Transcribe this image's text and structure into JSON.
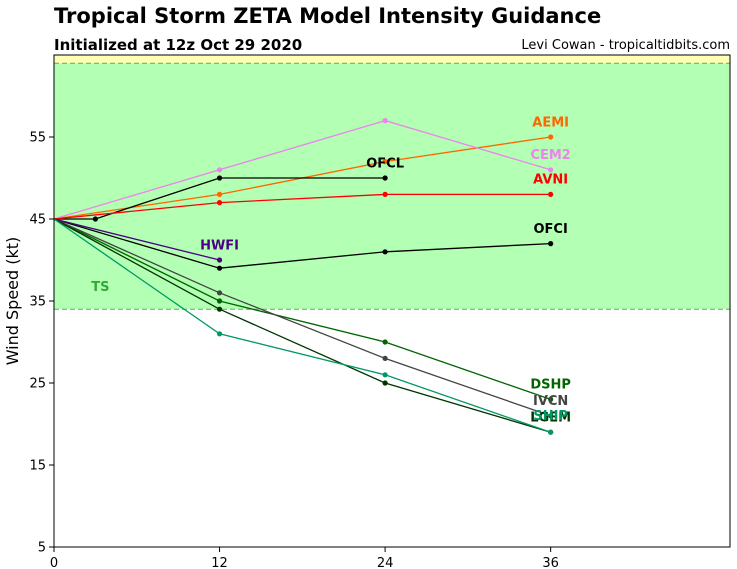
{
  "header": {
    "title": "Tropical Storm ZETA Model Intensity Guidance",
    "subtitle": "Initialized at 12z Oct 29 2020",
    "credit": "Levi Cowan - tropicaltidbits.com"
  },
  "chart_data": {
    "type": "line",
    "xlabel": "",
    "ylabel": "Wind Speed (kt)",
    "xlim": [
      0,
      49
    ],
    "ylim": [
      5,
      65
    ],
    "x_ticks": [
      0,
      12,
      24,
      36
    ],
    "y_ticks": [
      5,
      15,
      25,
      35,
      45,
      55
    ],
    "grid": false,
    "bands": [
      {
        "label": "TS",
        "y_from": 34,
        "y_to": 64,
        "color": "#b3ffb3",
        "label_color": "#33aa33",
        "label_x": 2.7,
        "label_y": 36.2
      },
      {
        "label": "",
        "y_from": 64,
        "y_to": 65,
        "color": "#ffffb3"
      }
    ],
    "series": [
      {
        "name": "AEMI",
        "color": "#ff6600",
        "points": [
          [
            0,
            45
          ],
          [
            12,
            48
          ],
          [
            24,
            52
          ],
          [
            36,
            55
          ]
        ],
        "label_x": 36,
        "label_y": 56.3
      },
      {
        "name": "CEM2",
        "color": "#ee82ee",
        "points": [
          [
            0,
            45
          ],
          [
            12,
            51
          ],
          [
            24,
            57
          ],
          [
            36,
            51
          ]
        ],
        "label_x": 36,
        "label_y": 52.3
      },
      {
        "name": "OFCL",
        "color": "#000000",
        "points": [
          [
            0,
            45
          ],
          [
            3,
            45
          ],
          [
            12,
            50
          ],
          [
            24,
            50
          ]
        ],
        "label_x": 24,
        "label_y": 51.3
      },
      {
        "name": "AVNI",
        "color": "#ff0000",
        "points": [
          [
            0,
            45
          ],
          [
            12,
            47
          ],
          [
            24,
            48
          ],
          [
            36,
            48
          ]
        ],
        "label_x": 36,
        "label_y": 49.3
      },
      {
        "name": "OFCI",
        "color": "#000000",
        "points": [
          [
            0,
            45
          ],
          [
            12,
            39
          ],
          [
            24,
            41
          ],
          [
            36,
            42
          ]
        ],
        "label_x": 36,
        "label_y": 43.3
      },
      {
        "name": "HWFI",
        "color": "#4b0082",
        "points": [
          [
            0,
            45
          ],
          [
            12,
            40
          ]
        ],
        "label_x": 12,
        "label_y": 41.3
      },
      {
        "name": "DSHP",
        "color": "#006400",
        "points": [
          [
            0,
            45
          ],
          [
            12,
            35
          ],
          [
            24,
            30
          ],
          [
            36,
            23
          ]
        ],
        "label_x": 36,
        "label_y": 24.3
      },
      {
        "name": "IVCN",
        "color": "#444444",
        "points": [
          [
            0,
            45
          ],
          [
            12,
            36
          ],
          [
            24,
            28
          ],
          [
            36,
            21
          ]
        ],
        "label_x": 36,
        "label_y": 22.3
      },
      {
        "name": "LGEM",
        "color": "#003300",
        "points": [
          [
            0,
            45
          ],
          [
            12,
            34
          ],
          [
            24,
            25
          ],
          [
            36,
            19
          ]
        ],
        "label_x": 36,
        "label_y": 20.3
      },
      {
        "name": "SHIP",
        "color": "#009966",
        "points": [
          [
            0,
            45
          ],
          [
            12,
            31
          ],
          [
            24,
            26
          ],
          [
            36,
            19
          ]
        ],
        "label_x": 36,
        "label_y": 20.5
      }
    ]
  }
}
